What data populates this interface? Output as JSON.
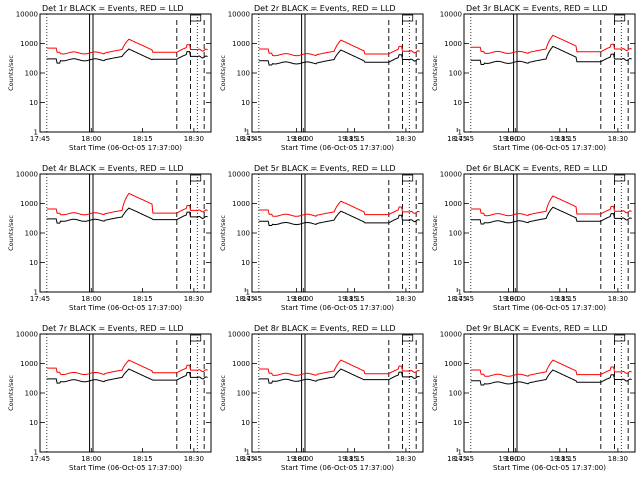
{
  "chart_data": {
    "type": "line",
    "layout": "3x3 grid",
    "y_scale": "log",
    "ylim": [
      1,
      10000
    ],
    "y_ticks": [
      "1",
      "10",
      "100",
      "1000",
      "10000"
    ],
    "x_ticks": [
      "17:45",
      "18:00",
      "18:15",
      "18:30",
      "18:45",
      "19:00",
      "19:15"
    ],
    "x_range_minutes": [
      -2,
      48
    ],
    "ylabel": "Counts/sec",
    "xlabel": "Start Time (06-Oct-05 17:37:00)",
    "series_colors": {
      "events": "#000000",
      "lld": "#ff0000"
    },
    "markers": {
      "dotted_lines_min": [
        0,
        44
      ],
      "solid_band_min": [
        12.5,
        13.5
      ],
      "dashed_lines_min": [
        38,
        42,
        46
      ],
      "box_min": [
        42,
        45
      ]
    },
    "panels": [
      {
        "title": "Det 1r BLACK = Events, RED = LLD",
        "ev_base": 280,
        "ev_peak": 650,
        "lld_base": 480,
        "lld_peak": 1400,
        "lld_start": 700,
        "ev_start": 300
      },
      {
        "title": "Det 2r BLACK = Events, RED = LLD",
        "ev_base": 220,
        "ev_peak": 600,
        "lld_base": 420,
        "lld_peak": 1300,
        "lld_start": 650,
        "ev_start": 260
      },
      {
        "title": "Det 3r BLACK = Events, RED = LLD",
        "ev_base": 230,
        "ev_peak": 800,
        "lld_base": 500,
        "lld_peak": 1900,
        "lld_start": 750,
        "ev_start": 270
      },
      {
        "title": "Det 4r BLACK = Events, RED = LLD",
        "ev_base": 270,
        "ev_peak": 700,
        "lld_base": 450,
        "lld_peak": 2200,
        "lld_start": 650,
        "ev_start": 300
      },
      {
        "title": "Det 5r BLACK = Events, RED = LLD",
        "ev_base": 210,
        "ev_peak": 550,
        "lld_base": 400,
        "lld_peak": 1200,
        "lld_start": 600,
        "ev_start": 250
      },
      {
        "title": "Det 6r BLACK = Events, RED = LLD",
        "ev_base": 240,
        "ev_peak": 750,
        "lld_base": 420,
        "lld_peak": 1800,
        "lld_start": 650,
        "ev_start": 280
      },
      {
        "title": "Det 7r BLACK = Events, RED = LLD",
        "ev_base": 260,
        "ev_peak": 650,
        "lld_base": 460,
        "lld_peak": 1300,
        "lld_start": 700,
        "ev_start": 300
      },
      {
        "title": "Det 8r BLACK = Events, RED = LLD",
        "ev_base": 270,
        "ev_peak": 650,
        "lld_base": 430,
        "lld_peak": 1300,
        "lld_start": 650,
        "ev_start": 300
      },
      {
        "title": "Det 9r BLACK = Events, RED = LLD",
        "ev_base": 220,
        "ev_peak": 600,
        "lld_base": 400,
        "lld_peak": 1300,
        "lld_start": 600,
        "ev_start": 260
      }
    ]
  }
}
